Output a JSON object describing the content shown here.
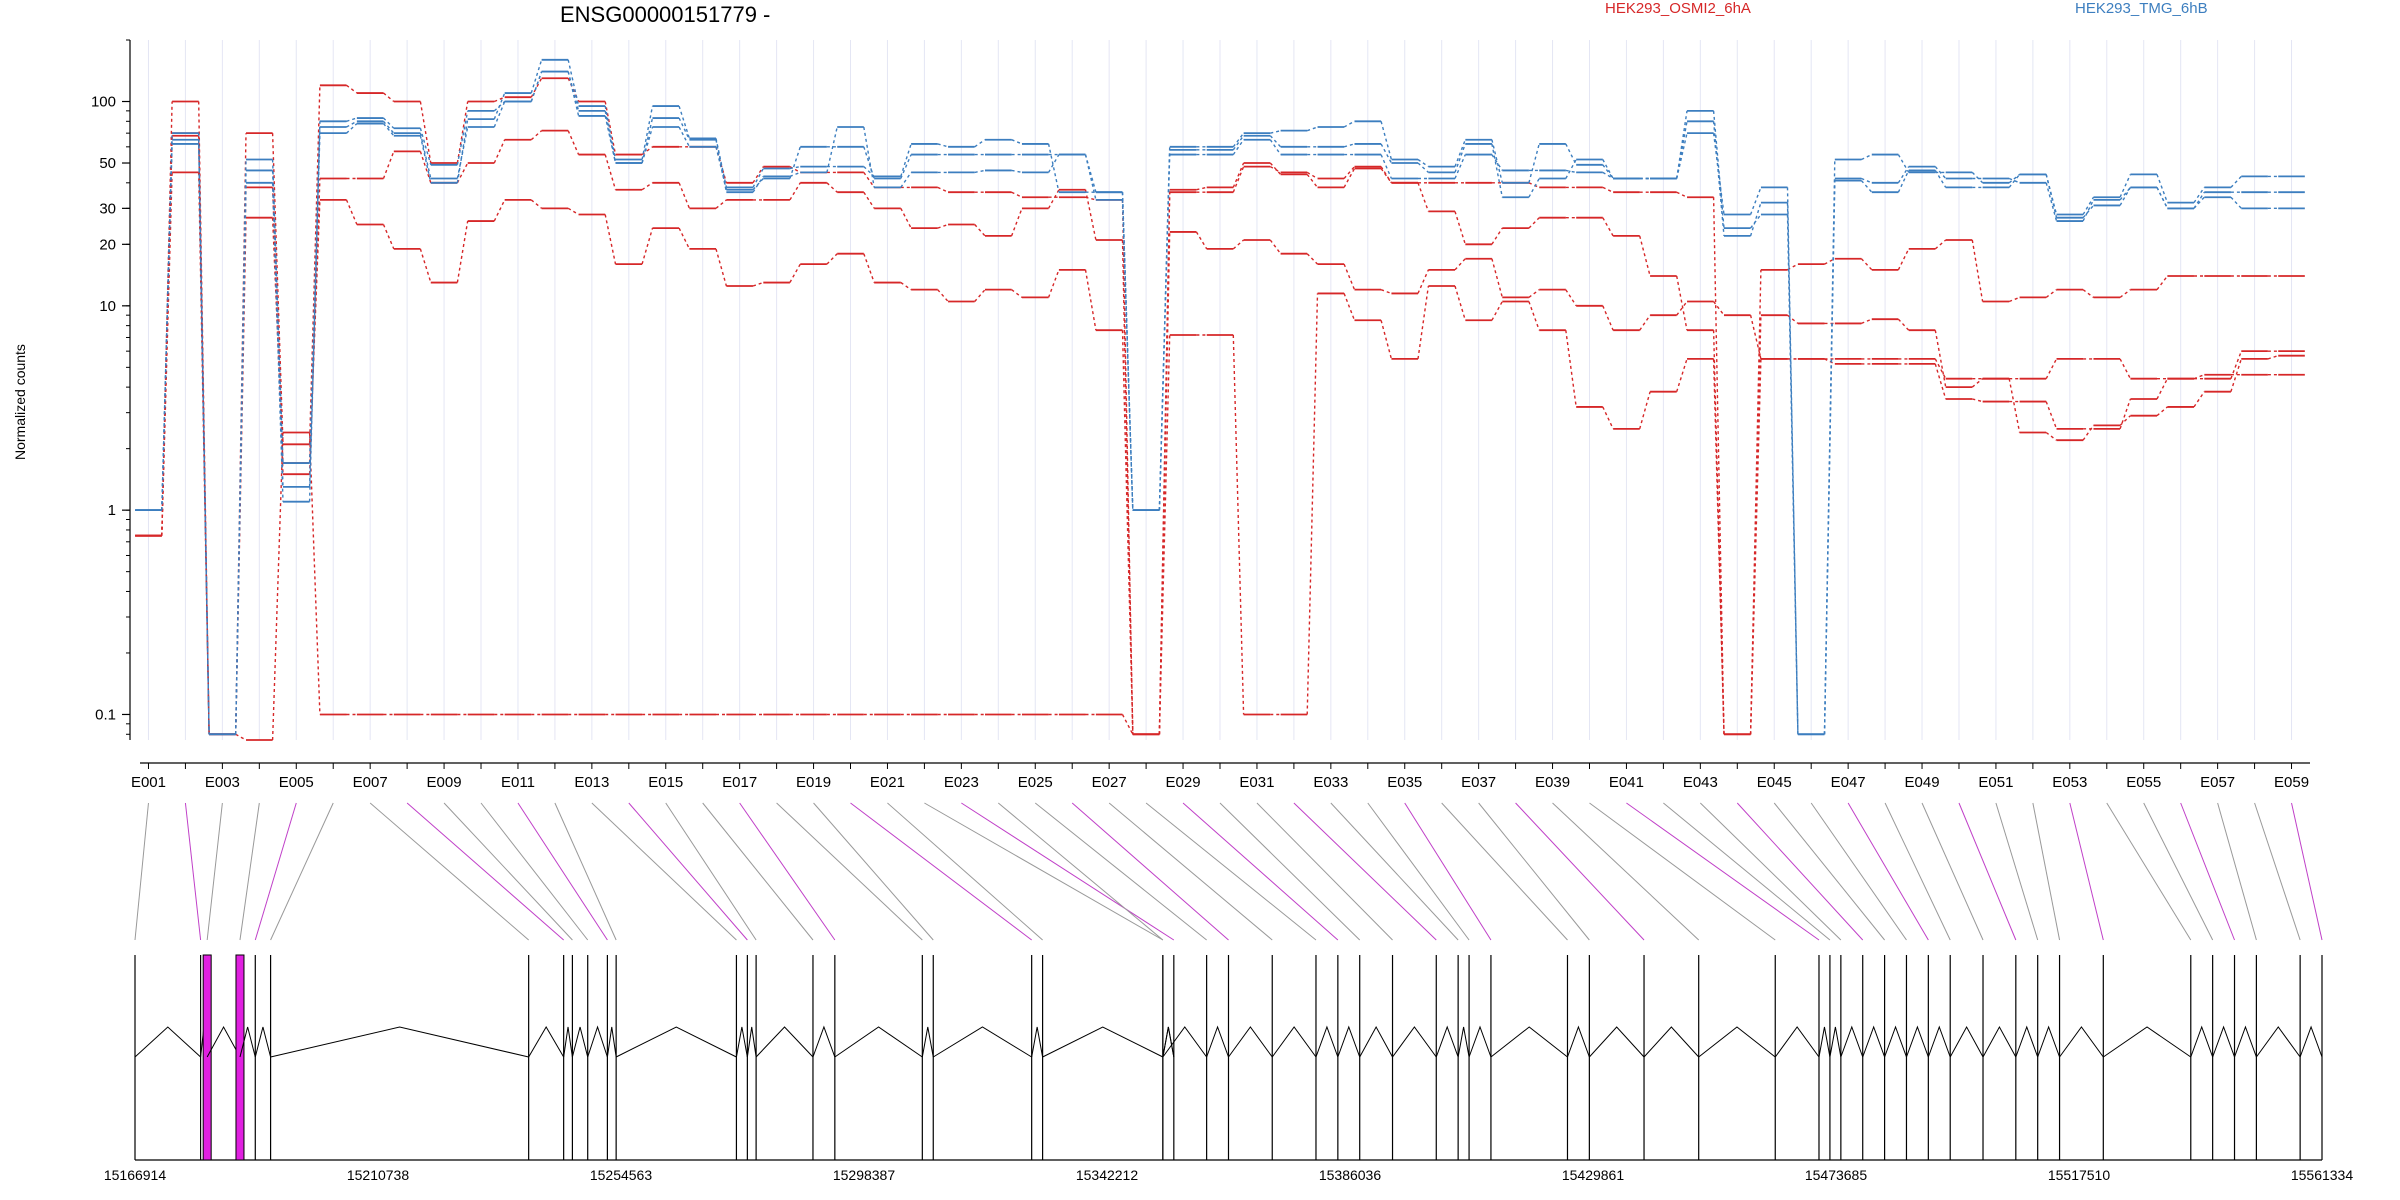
{
  "chart_data": {
    "type": "line",
    "title": "ENSG00000151779 -",
    "ylabel": "Normalized counts",
    "yscale": "log",
    "ylim": [
      0.075,
      200
    ],
    "yticks": [
      0.1,
      1,
      10,
      20,
      30,
      50,
      100
    ],
    "ytick_labels": [
      "0.1",
      "1",
      "10",
      "20",
      "30",
      "50",
      "100"
    ],
    "legend": [
      {
        "name": "HEK293_OSMI2_6hA",
        "color": "#d62728"
      },
      {
        "name": "HEK293_TMG_6hB",
        "color": "#3c7ebf"
      }
    ],
    "categories": [
      "E001",
      "E002",
      "E003",
      "E004",
      "E005",
      "E006",
      "E007",
      "E008",
      "E009",
      "E010",
      "E011",
      "E012",
      "E013",
      "E014",
      "E015",
      "E016",
      "E017",
      "E018",
      "E019",
      "E020",
      "E021",
      "E022",
      "E023",
      "E024",
      "E025",
      "E026",
      "E027",
      "E028",
      "E029",
      "E030",
      "E031",
      "E032",
      "E033",
      "E034",
      "E035",
      "E036",
      "E037",
      "E038",
      "E039",
      "E040",
      "E041",
      "E042",
      "E043",
      "E044",
      "E045",
      "E046",
      "E047",
      "E048",
      "E049",
      "E050",
      "E051",
      "E052",
      "E053",
      "E054",
      "E055",
      "E056",
      "E057",
      "E058",
      "E059"
    ],
    "xtick_labels": [
      "E001",
      "E003",
      "E005",
      "E007",
      "E009",
      "E011",
      "E013",
      "E015",
      "E017",
      "E019",
      "E021",
      "E023",
      "E025",
      "E027",
      "E029",
      "E031",
      "E033",
      "E035",
      "E037",
      "E039",
      "E041",
      "E043",
      "E045",
      "E047",
      "E049",
      "E051",
      "E053",
      "E055",
      "E057",
      "E059"
    ],
    "series": [
      {
        "color": "#d62728",
        "values": [
          0.75,
          100,
          0.08,
          70,
          2.1,
          120,
          110,
          100,
          50,
          100,
          105,
          130,
          100,
          55,
          60,
          60,
          40,
          48,
          45,
          45,
          38,
          38,
          36,
          36,
          34,
          34,
          33,
          0.08,
          36,
          36,
          48,
          45,
          42,
          48,
          40,
          40,
          40,
          40,
          38,
          38,
          36,
          36,
          34,
          0.08,
          5.5,
          5.5,
          5.5,
          5.5,
          5.5,
          4.4,
          4.4,
          4.4,
          5.5,
          5.5,
          4.4,
          4.4,
          4.6,
          4.6,
          4.6
        ]
      },
      {
        "color": "#d62728",
        "values": [
          0.75,
          68,
          0.08,
          38,
          1.5,
          42,
          42,
          57,
          40,
          50,
          65,
          72,
          55,
          37,
          40,
          30,
          33,
          33,
          40,
          36,
          30,
          24,
          25,
          22,
          30,
          37,
          21,
          0.08,
          37,
          38,
          50,
          44,
          38,
          47,
          40,
          29,
          20,
          24,
          27,
          27,
          22,
          14,
          7.6,
          0.08,
          15,
          16,
          17,
          15,
          19,
          21,
          10.5,
          11,
          12,
          11,
          12,
          14,
          14,
          14,
          14
        ]
      },
      {
        "color": "#d62728",
        "values": [
          0.75,
          45,
          0.08,
          27,
          1.7,
          33,
          25,
          19,
          13,
          26,
          33,
          30,
          28,
          16,
          24,
          19,
          12.5,
          13,
          16,
          18,
          13,
          12,
          10.5,
          12,
          11,
          15,
          7.6,
          0.08,
          23,
          19,
          21,
          18,
          16,
          12,
          11.5,
          15,
          17,
          11,
          12,
          10,
          7.6,
          9,
          10.5,
          9,
          5.5,
          5.5,
          5.2,
          5.2,
          5.2,
          3.5,
          3.4,
          3.4,
          2.5,
          2.5,
          3.5,
          4.4,
          4.4,
          6,
          6
        ]
      },
      {
        "color": "#d62728",
        "values": [
          0.75,
          70,
          0.08,
          0.075,
          2.4,
          0.1,
          0.1,
          0.1,
          0.1,
          0.1,
          0.1,
          0.1,
          0.1,
          0.1,
          0.1,
          0.1,
          0.1,
          0.1,
          0.1,
          0.1,
          0.1,
          0.1,
          0.1,
          0.1,
          0.1,
          0.1,
          0.1,
          0.08,
          7.2,
          7.2,
          0.1,
          0.1,
          11.5,
          8.5,
          5.5,
          12.5,
          8.5,
          10.5,
          7.6,
          3.2,
          2.5,
          3.8,
          5.5,
          0.08,
          9,
          8.2,
          8.2,
          8.6,
          7.6,
          4,
          4.4,
          2.4,
          2.2,
          2.6,
          2.9,
          3.2,
          3.8,
          5.5,
          5.7
        ]
      },
      {
        "color": "#3c7ebf",
        "values": [
          1.0,
          65,
          0.08,
          52,
          1.7,
          75,
          80,
          70,
          42,
          75,
          100,
          140,
          90,
          50,
          75,
          60,
          37,
          42,
          60,
          60,
          42,
          55,
          55,
          55,
          55,
          55,
          36,
          1.0,
          55,
          55,
          65,
          55,
          55,
          55,
          42,
          42,
          55,
          46,
          46,
          45,
          42,
          42,
          80,
          22,
          32,
          0.08,
          42,
          40,
          48,
          42,
          42,
          40,
          26,
          33,
          38,
          30,
          36,
          36,
          36
        ]
      },
      {
        "color": "#3c7ebf",
        "values": [
          1.0,
          62,
          0.08,
          46,
          1.3,
          70,
          78,
          68,
          40,
          82,
          110,
          160,
          95,
          52,
          95,
          66,
          38,
          47,
          48,
          48,
          43,
          62,
          60,
          65,
          62,
          36,
          36,
          1.0,
          60,
          60,
          70,
          72,
          75,
          80,
          52,
          48,
          65,
          40,
          62,
          49,
          42,
          42,
          70,
          28,
          38,
          0.08,
          52,
          55,
          45,
          45,
          40,
          44,
          28,
          34,
          44,
          32,
          38,
          43,
          43
        ]
      },
      {
        "color": "#3c7ebf",
        "values": [
          1.0,
          70,
          0.08,
          40,
          1.1,
          80,
          83,
          74,
          49,
          90,
          100,
          140,
          85,
          50,
          83,
          65,
          36,
          43,
          45,
          75,
          38,
          45,
          45,
          46,
          45,
          55,
          33,
          1.0,
          58,
          58,
          68,
          60,
          60,
          62,
          50,
          45,
          62,
          34,
          42,
          52,
          42,
          42,
          90,
          24,
          28,
          0.08,
          41,
          36,
          46,
          38,
          38,
          44,
          27,
          31,
          38,
          30,
          34,
          30,
          30
        ]
      }
    ],
    "genomic_coordinates": [
      "15166914",
      "15210738",
      "15254563",
      "15298387",
      "15342212",
      "15386036",
      "15429861",
      "15473685",
      "15517510",
      "15561334"
    ]
  }
}
